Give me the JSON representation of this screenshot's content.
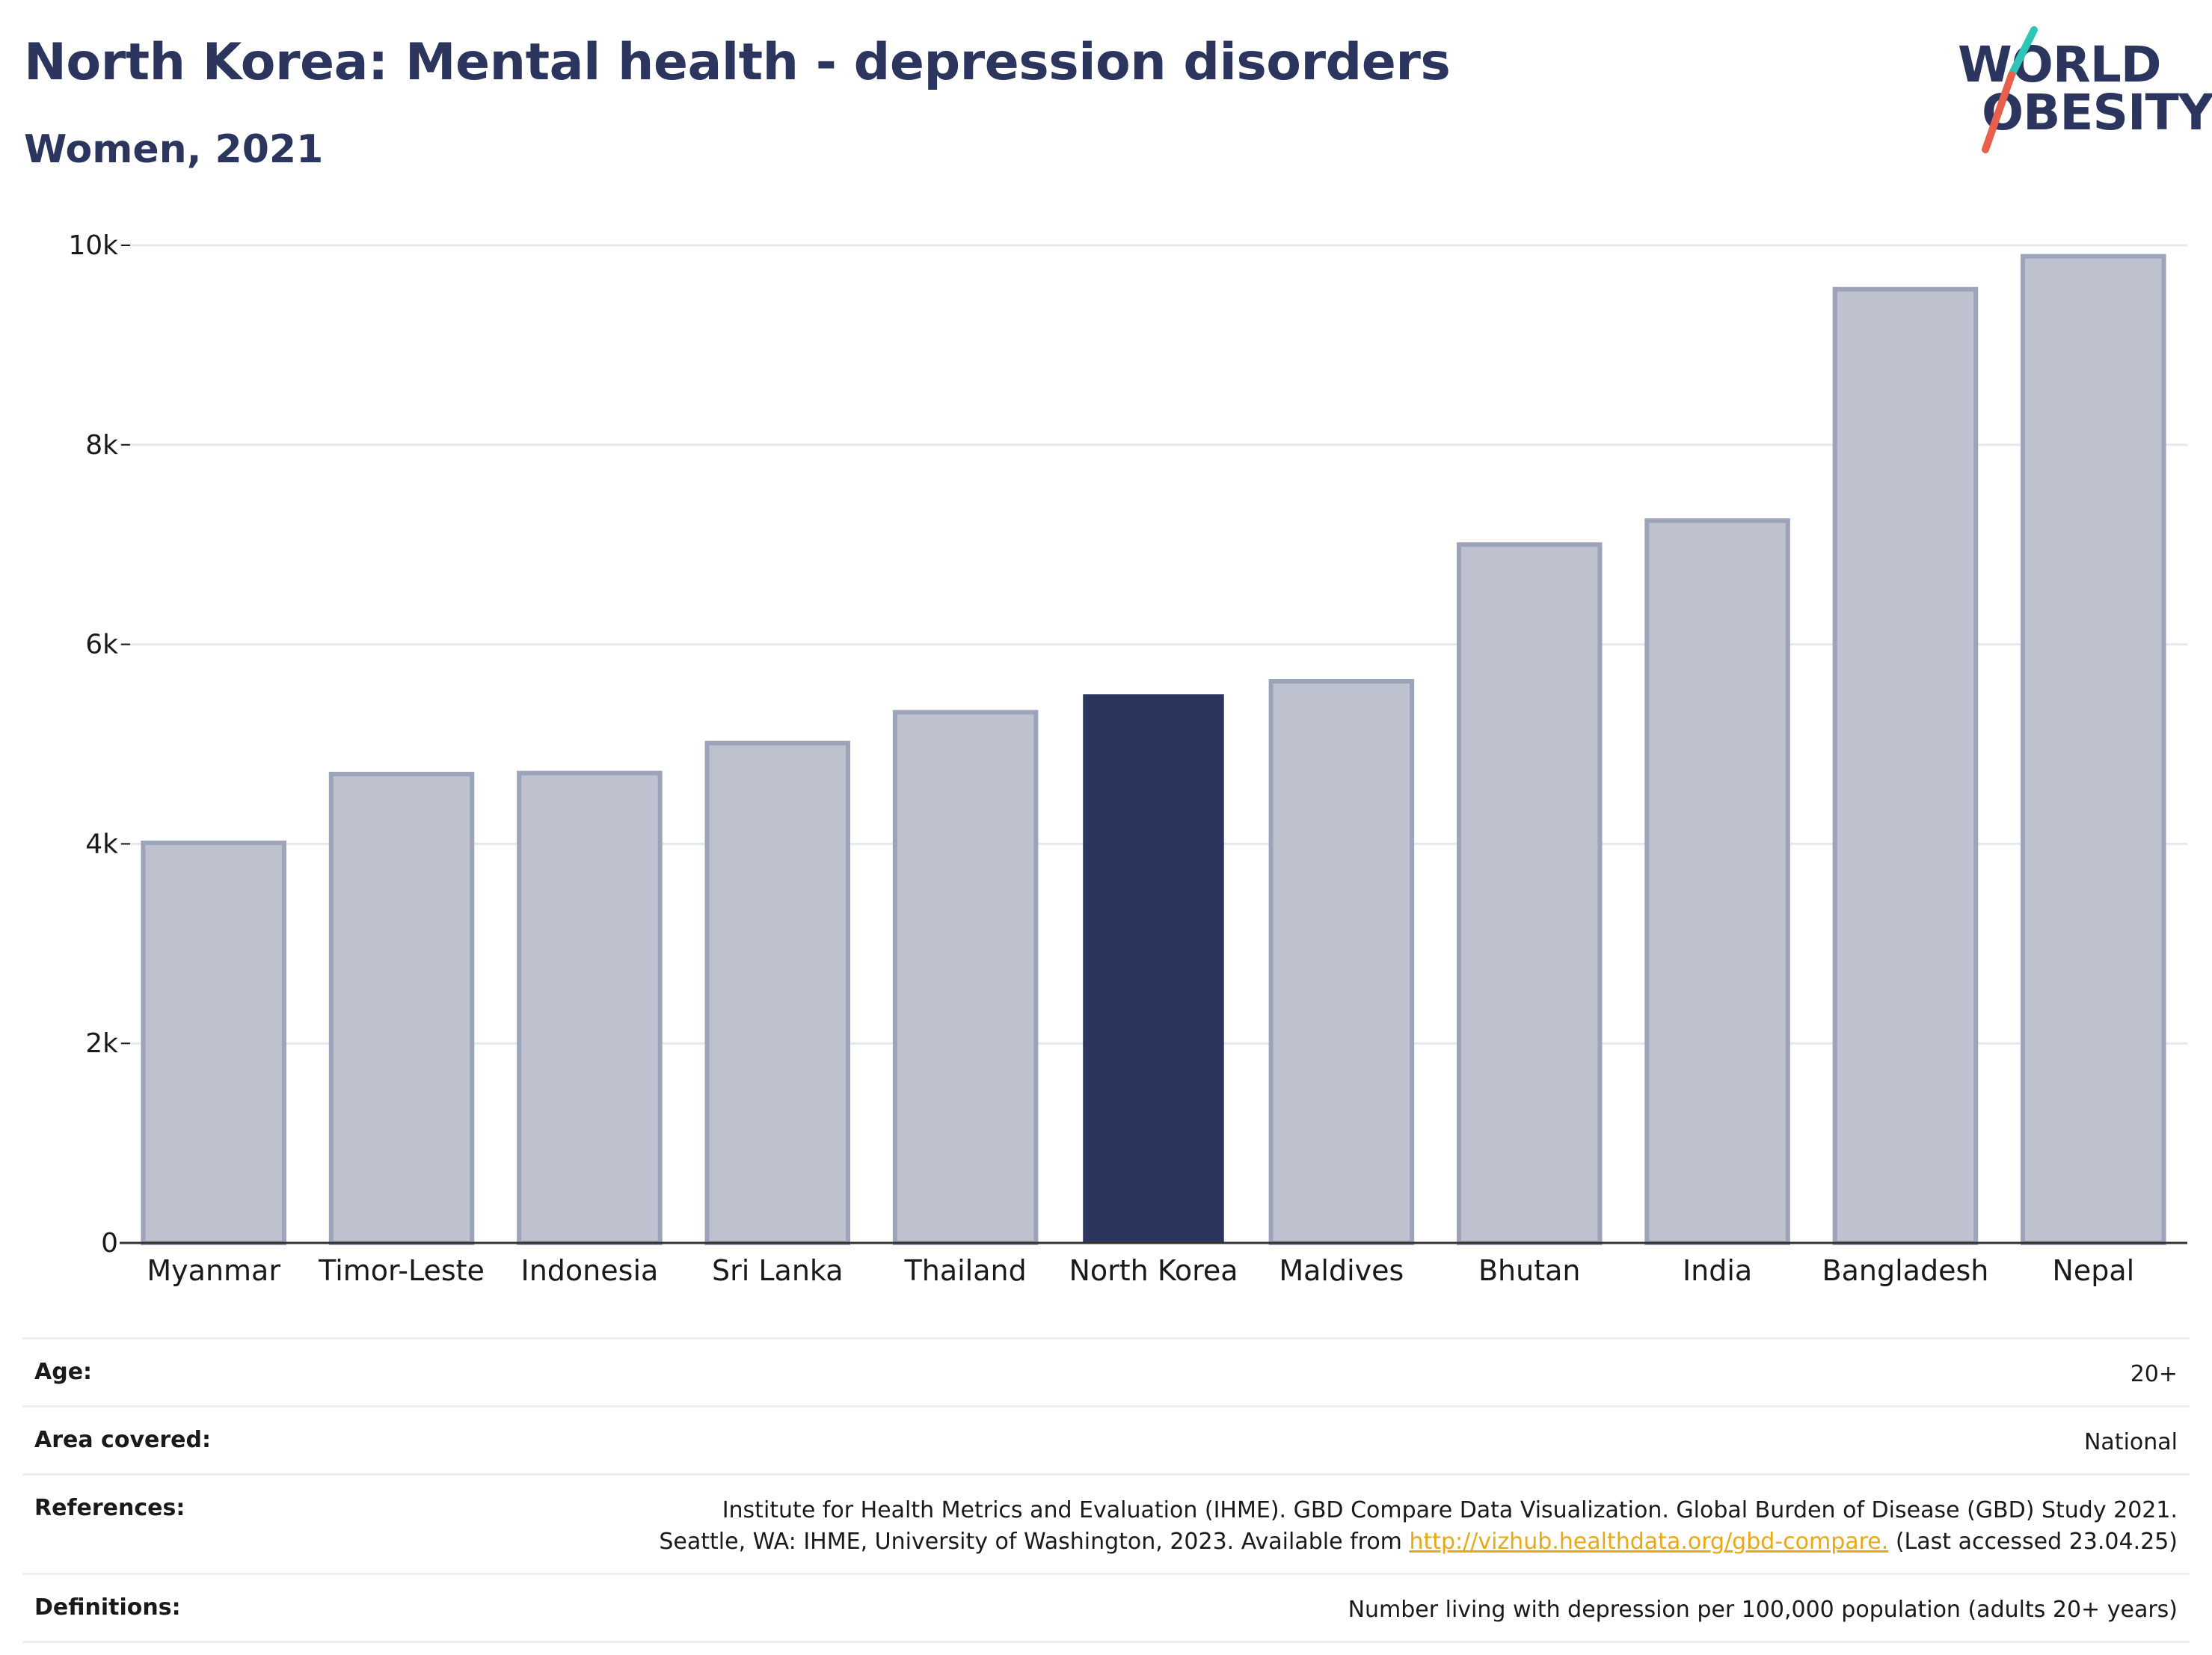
{
  "header": {
    "title": "North Korea: Mental health - depression disorders",
    "subtitle": "Women, 2021"
  },
  "logo": {
    "line1": "WORLD",
    "line2": "OBESITY",
    "accent_teal": "#2ec4b6",
    "accent_red": "#e8604c"
  },
  "colors": {
    "highlight_bar": "#2b355e",
    "other_bar_fill": "#bec2cf",
    "other_bar_stroke": "#9da3b8",
    "gridline": "#e6e8ef",
    "axis_text": "#1a1a1a"
  },
  "chart_data": {
    "type": "bar",
    "categories": [
      "Myanmar",
      "Timor-Leste",
      "Indonesia",
      "Sri Lanka",
      "Thailand",
      "North Korea",
      "Maldives",
      "Bhutan",
      "India",
      "Bangladesh",
      "Nepal"
    ],
    "values": [
      4010,
      4700,
      4710,
      5010,
      5320,
      5500,
      5630,
      7000,
      7240,
      9560,
      9890
    ],
    "highlight": "North Korea",
    "yticks": [
      0,
      2000,
      4000,
      6000,
      8000,
      10000
    ],
    "ytick_labels": [
      "0",
      "2k",
      "4k",
      "6k",
      "8k",
      "10k"
    ],
    "ylim": [
      0,
      10000
    ],
    "grid": true,
    "legend": false
  },
  "meta": {
    "age_label": "Age:",
    "age_value": "20+",
    "area_label": "Area covered:",
    "area_value": "National",
    "references_label": "References:",
    "references_line1": "Institute for Health Metrics and Evaluation (IHME). GBD Compare Data Visualization. Global Burden of Disease (GBD) Study 2021.",
    "references_line2_pre": "Seattle, WA: IHME, University of Washington, 2023. Available from ",
    "references_link": "http://vizhub.healthdata.org/gbd-compare.",
    "references_line2_post": " (Last accessed 23.04.25)",
    "definitions_label": "Definitions:",
    "definitions_value": "Number living with depression per 100,000 population (adults 20+ years)"
  }
}
